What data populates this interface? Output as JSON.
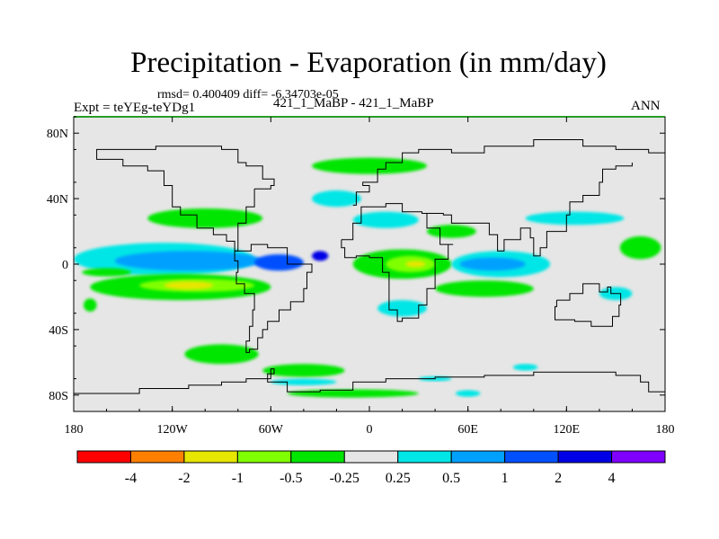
{
  "chart_data": {
    "type": "heatmap",
    "title": "Precipitation - Evaporation (in mm/day)",
    "stats_text": "rmsd= 0.400409 diff= -6.34703e-05",
    "left_label": "Expt = teYEg-teYDg1",
    "center_label": "421_1_MaBP - 421_1_MaBP",
    "right_label": "ANN",
    "x_ticks": [
      "180",
      "120W",
      "60W",
      "0",
      "60E",
      "120E",
      "180"
    ],
    "y_ticks": [
      "80N",
      "40N",
      "0",
      "40S",
      "80S"
    ],
    "xlim": [
      -180,
      180
    ],
    "ylim": [
      -90,
      90
    ],
    "colorbar": {
      "levels": [
        "-4",
        "-2",
        "-1",
        "-0.5",
        "-0.25",
        "0.25",
        "0.5",
        "1",
        "2",
        "4"
      ],
      "colors": [
        "#ff0000",
        "#ff8000",
        "#e6e600",
        "#80ff00",
        "#00e600",
        "#e6e6e6",
        "#00e6e6",
        "#00a0ff",
        "#0050ff",
        "#0000e6",
        "#8000ff"
      ]
    },
    "anomaly_regions": [
      {
        "lon": -160,
        "lat": 30,
        "w": 30,
        "h": 6,
        "level": 5
      },
      {
        "lon": -100,
        "lat": 28,
        "w": 70,
        "h": 12,
        "level": 4
      },
      {
        "lon": -125,
        "lat": 3,
        "w": 110,
        "h": 20,
        "level": 6
      },
      {
        "lon": -110,
        "lat": 2,
        "w": 90,
        "h": 12,
        "level": 7
      },
      {
        "lon": -55,
        "lat": 1,
        "w": 30,
        "h": 10,
        "level": 8
      },
      {
        "lon": -30,
        "lat": 5,
        "w": 10,
        "h": 6,
        "level": 9
      },
      {
        "lon": -115,
        "lat": -14,
        "w": 110,
        "h": 16,
        "level": 4
      },
      {
        "lon": -105,
        "lat": -13,
        "w": 70,
        "h": 8,
        "level": 3
      },
      {
        "lon": -110,
        "lat": -13,
        "w": 30,
        "h": 5,
        "level": 2
      },
      {
        "lon": -160,
        "lat": -5,
        "w": 30,
        "h": 5,
        "level": 4
      },
      {
        "lon": 0,
        "lat": 60,
        "w": 70,
        "h": 10,
        "level": 4
      },
      {
        "lon": -20,
        "lat": 40,
        "w": 30,
        "h": 10,
        "level": 6
      },
      {
        "lon": 10,
        "lat": 27,
        "w": 40,
        "h": 10,
        "level": 6
      },
      {
        "lon": 50,
        "lat": 20,
        "w": 30,
        "h": 8,
        "level": 4
      },
      {
        "lon": 125,
        "lat": 28,
        "w": 60,
        "h": 8,
        "level": 6
      },
      {
        "lon": 20,
        "lat": 0,
        "w": 60,
        "h": 18,
        "level": 4
      },
      {
        "lon": 25,
        "lat": 0,
        "w": 30,
        "h": 10,
        "level": 3
      },
      {
        "lon": 28,
        "lat": 0,
        "w": 12,
        "h": 4,
        "level": 2
      },
      {
        "lon": 80,
        "lat": 0,
        "w": 60,
        "h": 16,
        "level": 6
      },
      {
        "lon": 75,
        "lat": 0,
        "w": 40,
        "h": 8,
        "level": 7
      },
      {
        "lon": 70,
        "lat": -15,
        "w": 60,
        "h": 10,
        "level": 4
      },
      {
        "lon": 20,
        "lat": -27,
        "w": 30,
        "h": 10,
        "level": 6
      },
      {
        "lon": 165,
        "lat": 10,
        "w": 25,
        "h": 14,
        "level": 4
      },
      {
        "lon": 150,
        "lat": -18,
        "w": 20,
        "h": 8,
        "level": 6
      },
      {
        "lon": -90,
        "lat": -55,
        "w": 45,
        "h": 12,
        "level": 4
      },
      {
        "lon": -40,
        "lat": -65,
        "w": 50,
        "h": 8,
        "level": 4
      },
      {
        "lon": -40,
        "lat": -72,
        "w": 40,
        "h": 4,
        "level": 6
      },
      {
        "lon": -10,
        "lat": -79,
        "w": 80,
        "h": 5,
        "level": 4
      },
      {
        "lon": 60,
        "lat": -79,
        "w": 15,
        "h": 4,
        "level": 6
      },
      {
        "lon": 95,
        "lat": -63,
        "w": 15,
        "h": 4,
        "level": 6
      },
      {
        "lon": 40,
        "lat": -70,
        "w": 20,
        "h": 3,
        "level": 6
      },
      {
        "lon": -170,
        "lat": -25,
        "w": 8,
        "h": 8,
        "level": 4
      }
    ],
    "continent_outlines": [
      {
        "name": "South America",
        "lonlat": [
          [
            -82,
            8
          ],
          [
            -77,
            8
          ],
          [
            -72,
            12
          ],
          [
            -62,
            10
          ],
          [
            -50,
            0
          ],
          [
            -35,
            -5
          ],
          [
            -38,
            -15
          ],
          [
            -40,
            -23
          ],
          [
            -48,
            -28
          ],
          [
            -55,
            -35
          ],
          [
            -62,
            -40
          ],
          [
            -65,
            -45
          ],
          [
            -68,
            -52
          ],
          [
            -73,
            -54
          ],
          [
            -75,
            -47
          ],
          [
            -73,
            -38
          ],
          [
            -71,
            -28
          ],
          [
            -70,
            -18
          ],
          [
            -76,
            -12
          ],
          [
            -81,
            -5
          ],
          [
            -80,
            2
          ],
          [
            -82,
            8
          ]
        ]
      },
      {
        "name": "Africa",
        "lonlat": [
          [
            -17,
            15
          ],
          [
            -10,
            25
          ],
          [
            -5,
            35
          ],
          [
            10,
            37
          ],
          [
            20,
            32
          ],
          [
            32,
            31
          ],
          [
            35,
            22
          ],
          [
            43,
            12
          ],
          [
            51,
            12
          ],
          [
            48,
            3
          ],
          [
            40,
            -5
          ],
          [
            40,
            -15
          ],
          [
            35,
            -25
          ],
          [
            30,
            -33
          ],
          [
            20,
            -35
          ],
          [
            17,
            -28
          ],
          [
            12,
            -18
          ],
          [
            12,
            -5
          ],
          [
            8,
            4
          ],
          [
            0,
            5
          ],
          [
            -8,
            4
          ],
          [
            -15,
            10
          ],
          [
            -17,
            15
          ]
        ]
      },
      {
        "name": "Australia",
        "lonlat": [
          [
            114,
            -22
          ],
          [
            122,
            -18
          ],
          [
            130,
            -12
          ],
          [
            137,
            -12
          ],
          [
            140,
            -17
          ],
          [
            145,
            -14
          ],
          [
            147,
            -18
          ],
          [
            153,
            -25
          ],
          [
            152,
            -32
          ],
          [
            148,
            -38
          ],
          [
            140,
            -38
          ],
          [
            135,
            -35
          ],
          [
            125,
            -34
          ],
          [
            115,
            -34
          ],
          [
            113,
            -26
          ],
          [
            114,
            -22
          ]
        ]
      },
      {
        "name": "North America",
        "lonlat": [
          [
            -70,
            46
          ],
          [
            -60,
            48
          ],
          [
            -58,
            52
          ],
          [
            -65,
            60
          ],
          [
            -75,
            62
          ],
          [
            -80,
            70
          ],
          [
            -90,
            72
          ],
          [
            -110,
            72
          ],
          [
            -130,
            70
          ],
          [
            -160,
            70
          ],
          [
            -166,
            64
          ],
          [
            -150,
            60
          ],
          [
            -135,
            57
          ],
          [
            -125,
            48
          ],
          [
            -120,
            35
          ],
          [
            -115,
            30
          ],
          [
            -105,
            22
          ],
          [
            -95,
            18
          ],
          [
            -87,
            14
          ],
          [
            -82,
            8
          ],
          [
            -80,
            25
          ],
          [
            -75,
            35
          ],
          [
            -70,
            42
          ],
          [
            -70,
            46
          ]
        ]
      },
      {
        "name": "Antarctica",
        "lonlat": [
          [
            -180,
            -79
          ],
          [
            -160,
            -79
          ],
          [
            -140,
            -76
          ],
          [
            -110,
            -74
          ],
          [
            -90,
            -72
          ],
          [
            -75,
            -70
          ],
          [
            -60,
            -64
          ],
          [
            -58,
            -67
          ],
          [
            -62,
            -72
          ],
          [
            -50,
            -78
          ],
          [
            -30,
            -77
          ],
          [
            -10,
            -72
          ],
          [
            10,
            -70
          ],
          [
            40,
            -69
          ],
          [
            70,
            -68
          ],
          [
            100,
            -66
          ],
          [
            130,
            -66
          ],
          [
            150,
            -68
          ],
          [
            165,
            -72
          ],
          [
            170,
            -78
          ],
          [
            180,
            -79
          ]
        ]
      },
      {
        "name": "Eurasia north",
        "lonlat": [
          [
            -10,
            36
          ],
          [
            -8,
            44
          ],
          [
            0,
            48
          ],
          [
            -4,
            50
          ],
          [
            5,
            58
          ],
          [
            10,
            62
          ],
          [
            20,
            68
          ],
          [
            30,
            70
          ],
          [
            50,
            68
          ],
          [
            70,
            72
          ],
          [
            100,
            76
          ],
          [
            130,
            72
          ],
          [
            150,
            70
          ],
          [
            170,
            68
          ],
          [
            180,
            66
          ]
        ]
      },
      {
        "name": "Asia coast",
        "lonlat": [
          [
            32,
            31
          ],
          [
            45,
            30
          ],
          [
            50,
            25
          ],
          [
            57,
            25
          ],
          [
            65,
            25
          ],
          [
            73,
            18
          ],
          [
            78,
            8
          ],
          [
            82,
            15
          ],
          [
            92,
            22
          ],
          [
            98,
            16
          ],
          [
            100,
            5
          ],
          [
            104,
            10
          ],
          [
            108,
            20
          ],
          [
            120,
            30
          ],
          [
            122,
            38
          ],
          [
            130,
            42
          ],
          [
            140,
            50
          ],
          [
            142,
            58
          ],
          [
            150,
            60
          ],
          [
            160,
            62
          ]
        ]
      }
    ]
  }
}
